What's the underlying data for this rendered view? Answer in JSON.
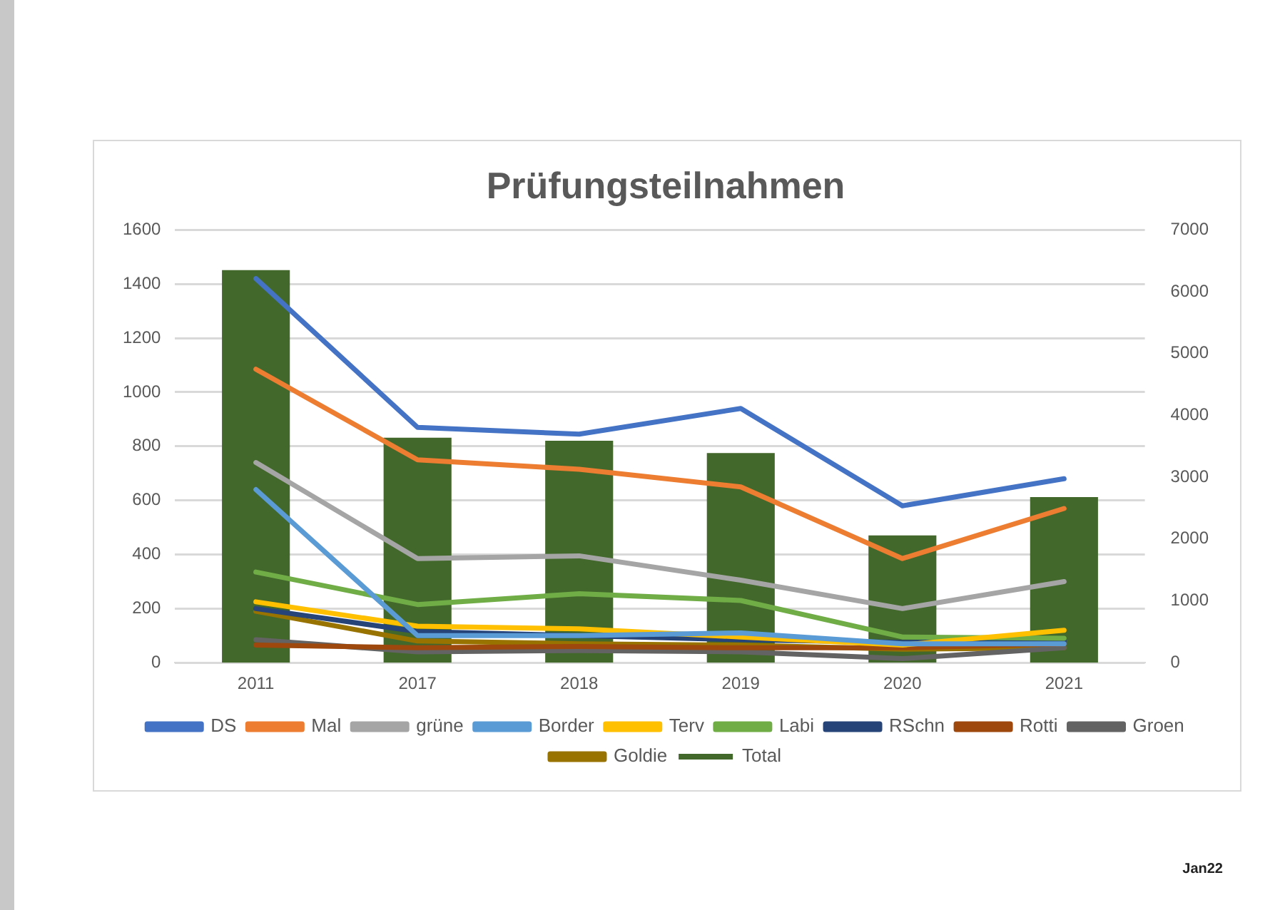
{
  "chart_data": {
    "type": "line",
    "title": "Prüfungsteilnahmen",
    "categories": [
      "2011",
      "2017",
      "2018",
      "2019",
      "2020",
      "2021"
    ],
    "series": [
      {
        "name": "Total",
        "type": "bar",
        "axis": "y2",
        "color": "#43682b",
        "values": [
          6350,
          3640,
          3590,
          3390,
          2060,
          2680
        ]
      },
      {
        "name": "DS",
        "color": "#4472c4",
        "values": [
          1420,
          870,
          845,
          940,
          580,
          680
        ]
      },
      {
        "name": "Mal",
        "color": "#ed7d31",
        "values": [
          1085,
          750,
          715,
          650,
          385,
          570
        ]
      },
      {
        "name": "grüne",
        "color": "#a5a5a5",
        "values": [
          740,
          385,
          395,
          305,
          200,
          300
        ]
      },
      {
        "name": "Border",
        "color": "#5b9bd5",
        "values": [
          640,
          100,
          100,
          110,
          70,
          70
        ]
      },
      {
        "name": "Terv",
        "color": "#ffc000",
        "values": [
          225,
          135,
          125,
          95,
          65,
          120
        ]
      },
      {
        "name": "Labi",
        "color": "#70ad47",
        "values": [
          335,
          215,
          255,
          230,
          95,
          90
        ]
      },
      {
        "name": "RSchn",
        "color": "#264478",
        "values": [
          200,
          115,
          100,
          85,
          75,
          80
        ]
      },
      {
        "name": "Rotti",
        "color": "#9e480e",
        "values": [
          65,
          55,
          60,
          55,
          55,
          70
        ]
      },
      {
        "name": "Groen",
        "color": "#636363",
        "values": [
          85,
          40,
          45,
          40,
          15,
          55
        ]
      },
      {
        "name": "Goldie",
        "color": "#997300",
        "values": [
          190,
          80,
          70,
          65,
          50,
          55
        ]
      }
    ],
    "ylim": [
      0,
      1600
    ],
    "yticks": [
      0,
      200,
      400,
      600,
      800,
      1000,
      1200,
      1400,
      1600
    ],
    "y2lim": [
      0,
      7000
    ],
    "y2ticks": [
      0,
      1000,
      2000,
      3000,
      4000,
      5000,
      6000,
      7000
    ],
    "grid": "y",
    "legend": "bottom",
    "marker": "none",
    "line_style": "solid",
    "annotations": [
      "Jan22"
    ]
  }
}
